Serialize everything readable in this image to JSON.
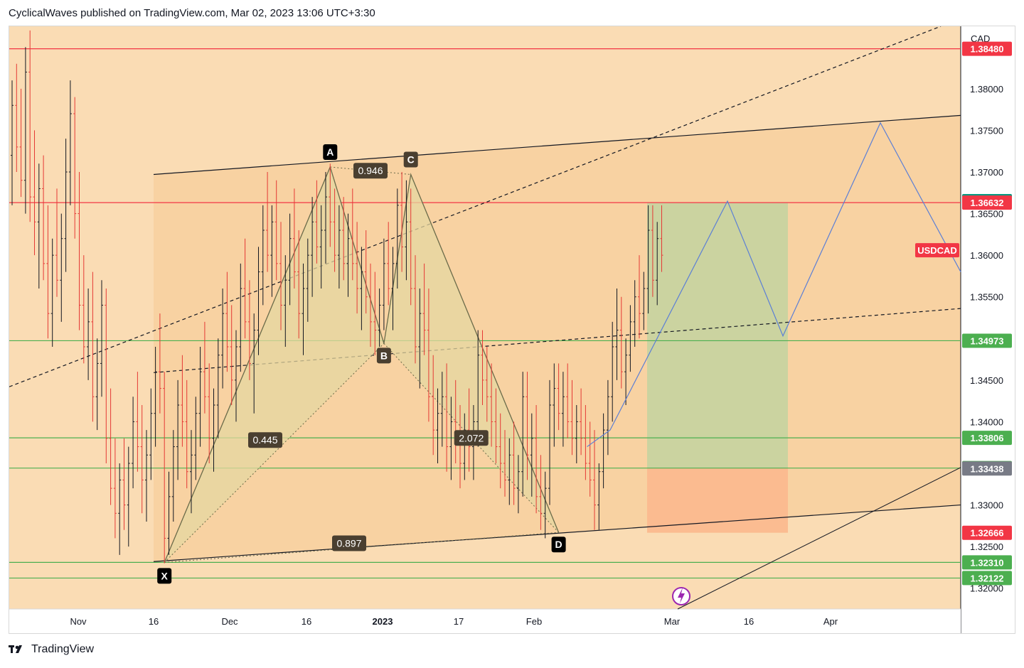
{
  "header": {
    "publisher_line": "CyclicalWaves published on TradingView.com, Mar 02, 2023 13:06 UTC+3:30"
  },
  "footer": {
    "brand": "TradingView",
    "logo_icon": "tradingview-logo-icon"
  },
  "colors": {
    "background": "#fadcb4",
    "zone": "#f7cf9e",
    "candle_up": "#131722",
    "candle_down": "#e53935",
    "red_level": "#f23645",
    "green_level": "#4caf50",
    "profit_zone": "#c8d3a0",
    "loss_zone": "#fbb98f",
    "projection": "#5b7fd6",
    "harmonic_fill": "#e5d7a0"
  },
  "chart_data": {
    "type": "candlestick",
    "symbol": "USDCAD",
    "currency_label": "CAD",
    "y_axis": {
      "range": [
        1.3175,
        1.3875
      ],
      "ticks": [
        "1.38000",
        "1.37500",
        "1.37000",
        "1.36500",
        "1.36000",
        "1.35500",
        "1.34500",
        "1.34000",
        "1.33000",
        "1.32500",
        "1.32000"
      ]
    },
    "x_axis": {
      "labels": [
        "Nov",
        "16",
        "Dec",
        "16",
        "2023",
        "17",
        "Feb",
        "Mar",
        "16",
        "Apr"
      ]
    },
    "price_levels": [
      {
        "value": 1.3848,
        "label": "1.38480",
        "color": "#f23645",
        "line": "red"
      },
      {
        "value": 1.3665,
        "label": "1.36650",
        "color": "#089981",
        "line": "none"
      },
      {
        "value": 1.36632,
        "label": "1.36632",
        "color": "#f23645",
        "line": "red"
      },
      {
        "value": 1.34973,
        "label": "1.34973",
        "color": "#4caf50",
        "line": "green"
      },
      {
        "value": 1.33806,
        "label": "1.33806",
        "color": "#4caf50",
        "line": "green"
      },
      {
        "value": 1.33443,
        "label": "1.33443",
        "color": "#4caf50",
        "line": "green"
      },
      {
        "value": 1.33438,
        "label": "1.33438",
        "color": "#787b86",
        "line": "none"
      },
      {
        "value": 1.32666,
        "label": "1.32666",
        "color": "#f23645",
        "line": "none"
      },
      {
        "value": 1.3231,
        "label": "1.32310",
        "color": "#4caf50",
        "line": "green"
      },
      {
        "value": 1.32122,
        "label": "1.32122",
        "color": "#4caf50",
        "line": "green"
      }
    ],
    "symbol_tag": {
      "label": "USDCAD",
      "value": 1.3606,
      "color": "#f23645"
    },
    "harmonic_pattern": {
      "points": [
        {
          "name": "X",
          "bar": 34,
          "price": 1.3231
        },
        {
          "name": "A",
          "bar": 71,
          "price": 1.3706
        },
        {
          "name": "B",
          "bar": 83,
          "price": 1.3494
        },
        {
          "name": "C",
          "bar": 89,
          "price": 1.3697
        },
        {
          "name": "D",
          "bar": 122,
          "price": 1.3267
        }
      ],
      "ratios": [
        {
          "label": "0.946"
        },
        {
          "label": "0.445"
        },
        {
          "label": "2.072"
        },
        {
          "label": "0.897"
        }
      ]
    },
    "candles": {
      "note": "Daily-ish OHLC bars approximated; each row [open, high, low, close] in price units",
      "ohlc": [
        [
          1.372,
          1.381,
          1.366,
          1.378
        ],
        [
          1.378,
          1.383,
          1.37,
          1.373
        ],
        [
          1.373,
          1.38,
          1.367,
          1.369
        ],
        [
          1.369,
          1.385,
          1.365,
          1.382
        ],
        [
          1.382,
          1.387,
          1.364,
          1.367
        ],
        [
          1.367,
          1.375,
          1.36,
          1.364
        ],
        [
          1.364,
          1.371,
          1.356,
          1.368
        ],
        [
          1.368,
          1.372,
          1.357,
          1.359
        ],
        [
          1.359,
          1.366,
          1.35,
          1.353
        ],
        [
          1.353,
          1.362,
          1.349,
          1.36
        ],
        [
          1.36,
          1.368,
          1.355,
          1.357
        ],
        [
          1.357,
          1.365,
          1.352,
          1.362
        ],
        [
          1.362,
          1.374,
          1.358,
          1.37
        ],
        [
          1.37,
          1.381,
          1.366,
          1.377
        ],
        [
          1.377,
          1.379,
          1.362,
          1.365
        ],
        [
          1.365,
          1.37,
          1.351,
          1.354
        ],
        [
          1.354,
          1.36,
          1.347,
          1.349
        ],
        [
          1.349,
          1.356,
          1.345,
          1.352
        ],
        [
          1.352,
          1.358,
          1.34,
          1.343
        ],
        [
          1.343,
          1.35,
          1.339,
          1.347
        ],
        [
          1.347,
          1.357,
          1.343,
          1.354
        ],
        [
          1.354,
          1.356,
          1.335,
          1.338
        ],
        [
          1.338,
          1.344,
          1.33,
          1.332
        ],
        [
          1.332,
          1.338,
          1.326,
          1.329
        ],
        [
          1.329,
          1.335,
          1.324,
          1.333
        ],
        [
          1.333,
          1.338,
          1.327,
          1.33
        ],
        [
          1.33,
          1.337,
          1.325,
          1.335
        ],
        [
          1.335,
          1.343,
          1.332,
          1.34
        ],
        [
          1.34,
          1.346,
          1.334,
          1.337
        ],
        [
          1.337,
          1.342,
          1.329,
          1.333
        ],
        [
          1.333,
          1.339,
          1.328,
          1.336
        ],
        [
          1.336,
          1.344,
          1.333,
          1.341
        ],
        [
          1.341,
          1.349,
          1.337,
          1.346
        ],
        [
          1.346,
          1.353,
          1.341,
          1.344
        ],
        [
          1.344,
          1.346,
          1.323,
          1.326
        ],
        [
          1.326,
          1.334,
          1.324,
          1.331
        ],
        [
          1.331,
          1.339,
          1.328,
          1.337
        ],
        [
          1.337,
          1.345,
          1.333,
          1.342
        ],
        [
          1.342,
          1.348,
          1.337,
          1.34
        ],
        [
          1.34,
          1.345,
          1.332,
          1.334
        ],
        [
          1.334,
          1.339,
          1.329,
          1.336
        ],
        [
          1.336,
          1.343,
          1.333,
          1.341
        ],
        [
          1.341,
          1.349,
          1.337,
          1.346
        ],
        [
          1.346,
          1.352,
          1.341,
          1.343
        ],
        [
          1.343,
          1.347,
          1.335,
          1.338
        ],
        [
          1.338,
          1.344,
          1.334,
          1.342
        ],
        [
          1.342,
          1.35,
          1.338,
          1.348
        ],
        [
          1.348,
          1.356,
          1.344,
          1.353
        ],
        [
          1.353,
          1.358,
          1.346,
          1.349
        ],
        [
          1.349,
          1.354,
          1.342,
          1.345
        ],
        [
          1.345,
          1.351,
          1.34,
          1.349
        ],
        [
          1.349,
          1.359,
          1.346,
          1.356
        ],
        [
          1.356,
          1.362,
          1.35,
          1.352
        ],
        [
          1.352,
          1.357,
          1.345,
          1.347
        ],
        [
          1.347,
          1.353,
          1.341,
          1.351
        ],
        [
          1.351,
          1.361,
          1.348,
          1.358
        ],
        [
          1.358,
          1.366,
          1.354,
          1.363
        ],
        [
          1.363,
          1.37,
          1.358,
          1.36
        ],
        [
          1.36,
          1.366,
          1.355,
          1.364
        ],
        [
          1.364,
          1.369,
          1.357,
          1.359
        ],
        [
          1.359,
          1.364,
          1.351,
          1.354
        ],
        [
          1.354,
          1.36,
          1.349,
          1.357
        ],
        [
          1.357,
          1.365,
          1.354,
          1.362
        ],
        [
          1.362,
          1.368,
          1.356,
          1.358
        ],
        [
          1.358,
          1.363,
          1.35,
          1.353
        ],
        [
          1.353,
          1.359,
          1.348,
          1.356
        ],
        [
          1.356,
          1.362,
          1.352,
          1.36
        ],
        [
          1.36,
          1.367,
          1.355,
          1.364
        ],
        [
          1.364,
          1.369,
          1.359,
          1.361
        ],
        [
          1.361,
          1.366,
          1.356,
          1.363
        ],
        [
          1.363,
          1.37,
          1.359,
          1.367
        ],
        [
          1.367,
          1.371,
          1.361,
          1.364
        ],
        [
          1.364,
          1.368,
          1.358,
          1.36
        ],
        [
          1.36,
          1.366,
          1.356,
          1.363
        ],
        [
          1.363,
          1.367,
          1.357,
          1.359
        ],
        [
          1.359,
          1.365,
          1.355,
          1.362
        ],
        [
          1.362,
          1.368,
          1.357,
          1.359
        ],
        [
          1.359,
          1.364,
          1.353,
          1.356
        ],
        [
          1.356,
          1.361,
          1.351,
          1.358
        ],
        [
          1.358,
          1.363,
          1.353,
          1.355
        ],
        [
          1.355,
          1.359,
          1.349,
          1.352
        ],
        [
          1.352,
          1.358,
          1.348,
          1.351
        ],
        [
          1.351,
          1.356,
          1.349,
          1.354
        ],
        [
          1.354,
          1.362,
          1.351,
          1.359
        ],
        [
          1.359,
          1.364,
          1.354,
          1.356
        ],
        [
          1.356,
          1.361,
          1.351,
          1.359
        ],
        [
          1.359,
          1.368,
          1.356,
          1.366
        ],
        [
          1.366,
          1.37,
          1.358,
          1.361
        ],
        [
          1.361,
          1.369,
          1.357,
          1.364
        ],
        [
          1.364,
          1.368,
          1.354,
          1.356
        ],
        [
          1.356,
          1.36,
          1.347,
          1.349
        ],
        [
          1.349,
          1.356,
          1.344,
          1.353
        ],
        [
          1.353,
          1.359,
          1.348,
          1.351
        ],
        [
          1.351,
          1.356,
          1.34,
          1.343
        ],
        [
          1.343,
          1.348,
          1.336,
          1.339
        ],
        [
          1.339,
          1.344,
          1.335,
          1.341
        ],
        [
          1.341,
          1.346,
          1.337,
          1.343
        ],
        [
          1.343,
          1.347,
          1.334,
          1.337
        ],
        [
          1.337,
          1.343,
          1.333,
          1.34
        ],
        [
          1.34,
          1.345,
          1.335,
          1.338
        ],
        [
          1.338,
          1.342,
          1.332,
          1.335
        ],
        [
          1.335,
          1.341,
          1.333,
          1.339
        ],
        [
          1.339,
          1.344,
          1.334,
          1.337
        ],
        [
          1.337,
          1.342,
          1.333,
          1.34
        ],
        [
          1.34,
          1.351,
          1.337,
          1.348
        ],
        [
          1.348,
          1.351,
          1.342,
          1.345
        ],
        [
          1.345,
          1.349,
          1.34,
          1.343
        ],
        [
          1.343,
          1.347,
          1.337,
          1.34
        ],
        [
          1.34,
          1.344,
          1.335,
          1.337
        ],
        [
          1.337,
          1.341,
          1.332,
          1.335
        ],
        [
          1.335,
          1.339,
          1.331,
          1.333
        ],
        [
          1.333,
          1.338,
          1.33,
          1.336
        ],
        [
          1.336,
          1.34,
          1.33,
          1.332
        ],
        [
          1.332,
          1.336,
          1.329,
          1.334
        ],
        [
          1.334,
          1.346,
          1.331,
          1.343
        ],
        [
          1.343,
          1.346,
          1.333,
          1.336
        ],
        [
          1.336,
          1.341,
          1.331,
          1.338
        ],
        [
          1.338,
          1.342,
          1.329,
          1.331
        ],
        [
          1.331,
          1.336,
          1.327,
          1.329
        ],
        [
          1.329,
          1.334,
          1.326,
          1.332
        ],
        [
          1.332,
          1.345,
          1.33,
          1.342
        ],
        [
          1.342,
          1.347,
          1.337,
          1.344
        ],
        [
          1.344,
          1.347,
          1.339,
          1.341
        ],
        [
          1.341,
          1.346,
          1.337,
          1.343
        ],
        [
          1.343,
          1.347,
          1.338,
          1.34
        ],
        [
          1.34,
          1.345,
          1.336,
          1.338
        ],
        [
          1.338,
          1.342,
          1.335,
          1.34
        ],
        [
          1.34,
          1.344,
          1.336,
          1.338
        ],
        [
          1.338,
          1.342,
          1.333,
          1.335
        ],
        [
          1.335,
          1.34,
          1.331,
          1.333
        ],
        [
          1.333,
          1.339,
          1.327,
          1.33
        ],
        [
          1.33,
          1.335,
          1.327,
          1.334
        ],
        [
          1.334,
          1.341,
          1.332,
          1.339
        ],
        [
          1.339,
          1.345,
          1.336,
          1.343
        ],
        [
          1.343,
          1.352,
          1.34,
          1.349
        ],
        [
          1.349,
          1.356,
          1.345,
          1.351
        ],
        [
          1.351,
          1.355,
          1.344,
          1.346
        ],
        [
          1.346,
          1.35,
          1.342,
          1.348
        ],
        [
          1.348,
          1.354,
          1.346,
          1.352
        ],
        [
          1.352,
          1.357,
          1.349,
          1.355
        ],
        [
          1.355,
          1.36,
          1.35,
          1.353
        ],
        [
          1.353,
          1.358,
          1.351,
          1.356
        ],
        [
          1.356,
          1.366,
          1.353,
          1.363
        ],
        [
          1.363,
          1.366,
          1.355,
          1.357
        ],
        [
          1.357,
          1.364,
          1.354,
          1.362
        ],
        [
          1.362,
          1.366,
          1.358,
          1.36
        ]
      ]
    }
  }
}
